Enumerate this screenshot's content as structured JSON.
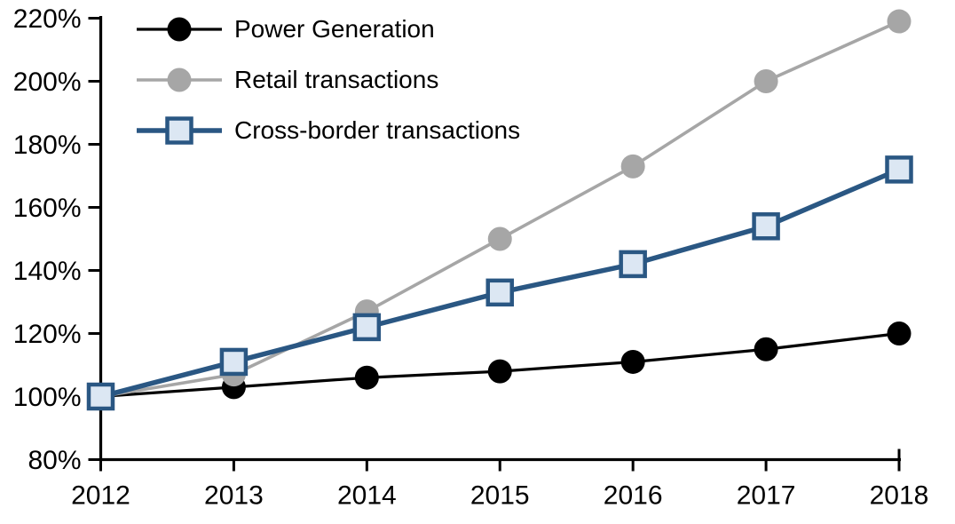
{
  "chart_data": {
    "type": "line",
    "title": "",
    "xlabel": "",
    "ylabel": "",
    "grid": false,
    "background": "#ffffff",
    "legend_position": "top-left",
    "x": [
      "2012",
      "2013",
      "2014",
      "2015",
      "2016",
      "2017",
      "2018"
    ],
    "y_axis": {
      "range": [
        80,
        220
      ],
      "tick_step": 20,
      "ticks": [
        {
          "value": 80,
          "label": "80%"
        },
        {
          "value": 100,
          "label": "100%"
        },
        {
          "value": 120,
          "label": "120%"
        },
        {
          "value": 140,
          "label": "140%"
        },
        {
          "value": 160,
          "label": "160%"
        },
        {
          "value": 180,
          "label": "180%"
        },
        {
          "value": 200,
          "label": "200%"
        },
        {
          "value": 220,
          "label": "220%"
        }
      ]
    },
    "series": [
      {
        "name": "Power Generation",
        "line_color": "#000000",
        "line_width": 3.25,
        "marker": "circle",
        "marker_fill": "#000000",
        "marker_stroke": "#000000",
        "values": [
          100,
          103,
          106,
          108,
          111,
          115,
          120
        ]
      },
      {
        "name": "Retail transactions",
        "line_color": "#A6A6A6",
        "line_width": 3.6,
        "marker": "circle",
        "marker_fill": "#A6A6A6",
        "marker_stroke": "#A6A6A6",
        "values": [
          100,
          107,
          127,
          150,
          173,
          200,
          219
        ]
      },
      {
        "name": "Cross-border transactions",
        "line_color": "#2A5783",
        "line_width": 5.5,
        "marker": "square",
        "marker_fill": "#DCE7F3",
        "marker_stroke": "#2A5783",
        "values": [
          100,
          111,
          122,
          133,
          142,
          154,
          172
        ]
      }
    ],
    "axis_color": "#000000"
  }
}
